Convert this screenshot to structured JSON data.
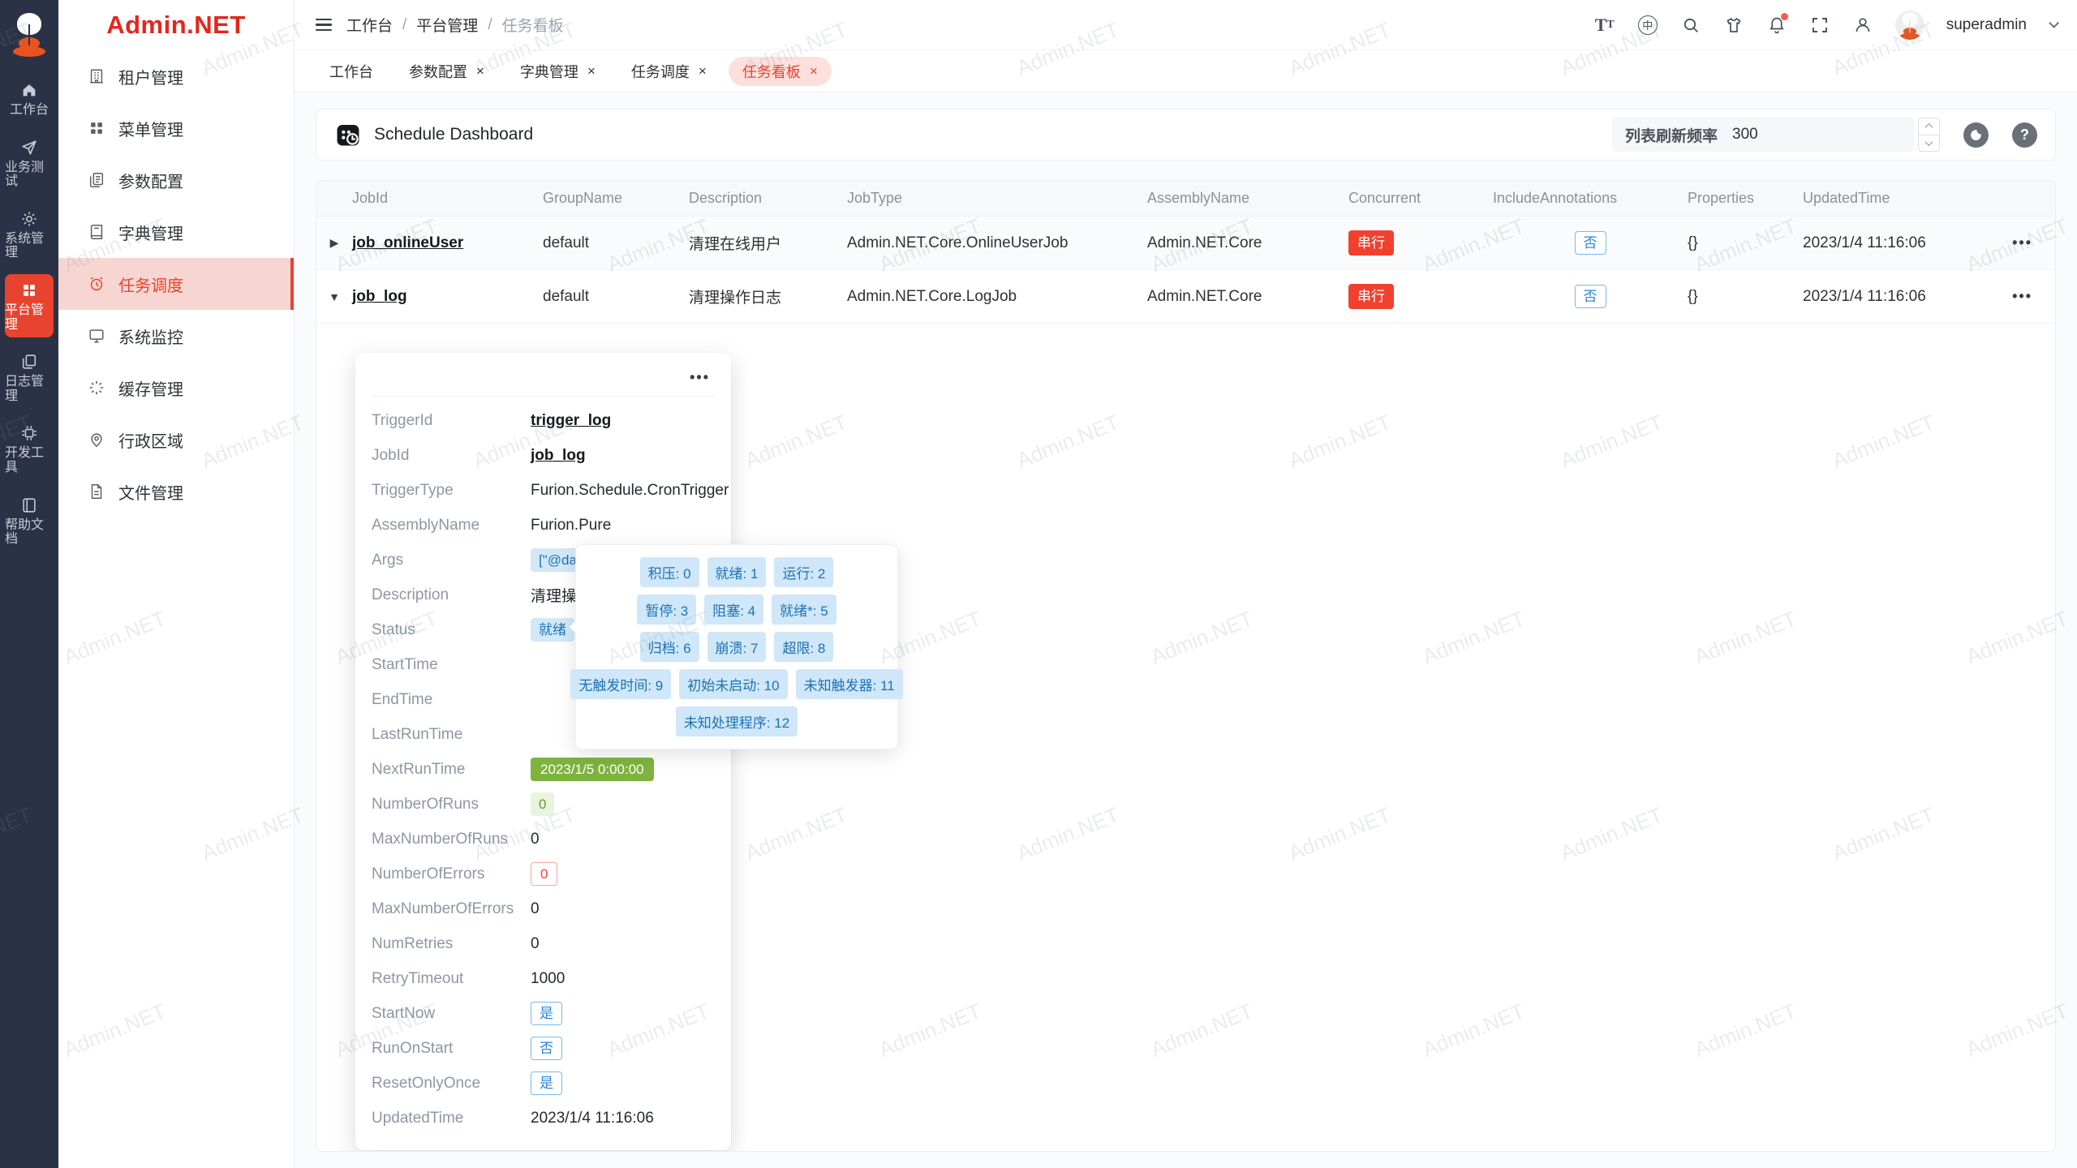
{
  "watermark": {
    "text": "Admin.NET"
  },
  "brand": {
    "logo_text": "Admin.NET"
  },
  "rail": {
    "items": [
      {
        "label": "工作台",
        "icon": "home-icon"
      },
      {
        "label": "业务测试",
        "icon": "send-icon"
      },
      {
        "label": "系统管理",
        "icon": "gear-icon"
      },
      {
        "label": "平台管理",
        "icon": "grid-icon",
        "active": true
      },
      {
        "label": "日志管理",
        "icon": "copy-icon"
      },
      {
        "label": "开发工具",
        "icon": "chip-icon"
      },
      {
        "label": "帮助文档",
        "icon": "book-icon"
      }
    ]
  },
  "sidebar": {
    "items": [
      {
        "label": "租户管理",
        "icon": "building-icon"
      },
      {
        "label": "菜单管理",
        "icon": "menu-grid-icon"
      },
      {
        "label": "参数配置",
        "icon": "document-copy-icon"
      },
      {
        "label": "字典管理",
        "icon": "dictionary-book-icon"
      },
      {
        "label": "任务调度",
        "icon": "alarm-clock-icon",
        "active": true
      },
      {
        "label": "系统监控",
        "icon": "monitor-icon"
      },
      {
        "label": "缓存管理",
        "icon": "cache-spinner-icon"
      },
      {
        "label": "行政区域",
        "icon": "map-pin-icon"
      },
      {
        "label": "文件管理",
        "icon": "file-icon"
      }
    ]
  },
  "header": {
    "breadcrumb": {
      "items": [
        "工作台",
        "平台管理",
        "任务看板"
      ],
      "separator": "/"
    },
    "lang_glyph": "中",
    "user": "superadmin"
  },
  "tabs": {
    "close_glyph": "×",
    "items": [
      {
        "label": "工作台",
        "closable": false
      },
      {
        "label": "参数配置",
        "closable": true
      },
      {
        "label": "字典管理",
        "closable": true
      },
      {
        "label": "任务调度",
        "closable": true
      },
      {
        "label": "任务看板",
        "closable": true,
        "active": true
      }
    ]
  },
  "toolbar": {
    "title": "Schedule Dashboard",
    "refresh_label": "列表刷新频率",
    "refresh_value": "300",
    "help_glyph": "?"
  },
  "table": {
    "columns": [
      "JobId",
      "GroupName",
      "Description",
      "JobType",
      "AssemblyName",
      "Concurrent",
      "IncludeAnnotations",
      "Properties",
      "UpdatedTime"
    ],
    "rows": [
      {
        "expand": "▶",
        "job_id": "job_onlineUser",
        "group_name": "default",
        "description": "清理在线用户",
        "job_type": "Admin.NET.Core.OnlineUserJob",
        "assembly_name": "Admin.NET.Core",
        "concurrent": "串行",
        "include_annotations": "否",
        "properties": "{}",
        "updated_time": "2023/1/4 11:16:06",
        "actions": "•••"
      },
      {
        "expand": "▼",
        "job_id": "job_log",
        "group_name": "default",
        "description": "清理操作日志",
        "job_type": "Admin.NET.Core.LogJob",
        "assembly_name": "Admin.NET.Core",
        "concurrent": "串行",
        "include_annotations": "否",
        "properties": "{}",
        "updated_time": "2023/1/4 11:16:06",
        "actions": "•••"
      }
    ]
  },
  "detail": {
    "menu": "•••",
    "rows": [
      {
        "label": "TriggerId",
        "value": "trigger_log",
        "type": "link"
      },
      {
        "label": "JobId",
        "value": "job_log",
        "type": "link"
      },
      {
        "label": "TriggerType",
        "value": "Furion.Schedule.CronTrigger",
        "type": "text"
      },
      {
        "label": "AssemblyName",
        "value": "Furion.Pure",
        "type": "text"
      },
      {
        "label": "Args",
        "value": "[\"@daily\"]",
        "type": "tag-blue"
      },
      {
        "label": "Description",
        "value": "清理操作日志",
        "type": "text"
      },
      {
        "label": "Status",
        "value": "就绪",
        "type": "tag-blue"
      },
      {
        "label": "StartTime",
        "value": "",
        "type": "empty"
      },
      {
        "label": "EndTime",
        "value": "",
        "type": "empty"
      },
      {
        "label": "LastRunTime",
        "value": "",
        "type": "empty"
      },
      {
        "label": "NextRunTime",
        "value": "2023/1/5 0:00:00",
        "type": "tag-green-solid"
      },
      {
        "label": "NumberOfRuns",
        "value": "0",
        "type": "tag-green-light"
      },
      {
        "label": "MaxNumberOfRuns",
        "value": "0",
        "type": "text"
      },
      {
        "label": "NumberOfErrors",
        "value": "0",
        "type": "tag-red-outline"
      },
      {
        "label": "MaxNumberOfErrors",
        "value": "0",
        "type": "text"
      },
      {
        "label": "NumRetries",
        "value": "0",
        "type": "text"
      },
      {
        "label": "RetryTimeout",
        "value": "1000",
        "type": "text"
      },
      {
        "label": "StartNow",
        "value": "是",
        "type": "tag-blue-outline"
      },
      {
        "label": "RunOnStart",
        "value": "否",
        "type": "tag-blue-outline"
      },
      {
        "label": "ResetOnlyOnce",
        "value": "是",
        "type": "tag-blue-outline"
      },
      {
        "label": "UpdatedTime",
        "value": "2023/1/4 11:16:06",
        "type": "text"
      }
    ]
  },
  "status_popover": {
    "tags": [
      "积压: 0",
      "就绪: 1",
      "运行: 2",
      "暂停: 3",
      "阻塞: 4",
      "就绪*: 5",
      "归档: 6",
      "崩溃: 7",
      "超限: 8",
      "无触发时间: 9",
      "初始未启动: 10",
      "未知触发器: 11",
      "未知处理程序: 12"
    ]
  },
  "colors": {
    "brand_red": "#e3261d",
    "accent_red": "#e8432e",
    "tag_red": "#f2402f",
    "tag_blue_bg": "#d2e8f8",
    "tag_blue_text": "#1d72b5",
    "tag_green": "#7db33e",
    "rail_bg": "#2b3245"
  }
}
